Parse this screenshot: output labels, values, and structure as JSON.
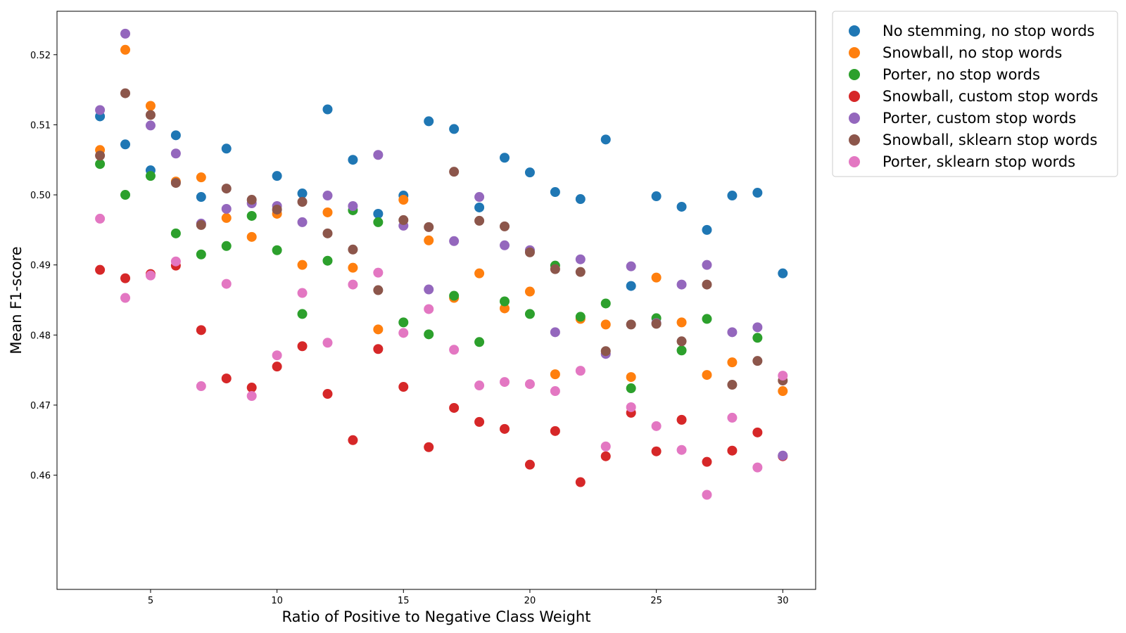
{
  "chart_data": {
    "type": "scatter",
    "title": "",
    "xlabel": "Ratio of Positive to Negative Class Weight",
    "ylabel": "Mean F1-score",
    "xlim": [
      1.3,
      31.3
    ],
    "ylim": [
      0.4437,
      0.5262
    ],
    "x_ticks": [
      5,
      10,
      15,
      20,
      25,
      30
    ],
    "y_ticks": [
      0.46,
      0.47,
      0.48,
      0.49,
      0.5,
      0.51,
      0.52
    ],
    "x_tick_labels": [
      "5",
      "10",
      "15",
      "20",
      "25",
      "30"
    ],
    "y_tick_labels": [
      "0.46",
      "0.47",
      "0.48",
      "0.49",
      "0.50",
      "0.51",
      "0.52"
    ],
    "grid": false,
    "legend_position": "outside-top-right",
    "x": [
      3,
      4,
      5,
      6,
      7,
      8,
      9,
      10,
      11,
      12,
      13,
      14,
      15,
      16,
      17,
      18,
      19,
      20,
      21,
      22,
      23,
      24,
      25,
      26,
      27,
      28,
      29,
      30
    ],
    "series": [
      {
        "name": "No stemming, no stop words",
        "color": "#1f77b4",
        "values": [
          0.5112,
          0.5072,
          0.5035,
          0.5085,
          0.4997,
          0.5066,
          null,
          0.5027,
          0.5002,
          0.5122,
          0.505,
          0.4973,
          0.4999,
          0.5105,
          0.5094,
          0.4982,
          0.5053,
          0.5032,
          0.5004,
          0.4994,
          0.5079,
          0.487,
          0.4998,
          0.4983,
          0.495,
          0.4999,
          0.5003,
          0.4888
        ]
      },
      {
        "name": "Snowball, no stop words",
        "color": "#ff7f0e",
        "values": [
          0.5064,
          0.5207,
          0.5127,
          0.5019,
          0.5025,
          0.4967,
          0.494,
          0.4973,
          0.49,
          0.4975,
          0.4896,
          0.4808,
          0.4993,
          0.4935,
          0.4853,
          0.4888,
          0.4838,
          0.4862,
          0.4744,
          0.4823,
          0.4815,
          0.474,
          0.4882,
          0.4818,
          0.4743,
          0.4761,
          null,
          0.472
        ]
      },
      {
        "name": "Porter, no stop words",
        "color": "#2ca02c",
        "values": [
          0.5044,
          0.5,
          0.5027,
          0.4945,
          0.4915,
          0.4927,
          0.497,
          0.4921,
          0.483,
          0.4906,
          0.4978,
          0.4961,
          0.4818,
          0.4801,
          0.4856,
          0.479,
          0.4848,
          0.483,
          0.4899,
          0.4826,
          0.4845,
          0.4724,
          0.4824,
          0.4778,
          0.4823,
          null,
          0.4796,
          null
        ]
      },
      {
        "name": "Snowball, custom stop words",
        "color": "#d62728",
        "values": [
          0.4893,
          0.4881,
          0.4887,
          0.4899,
          0.4807,
          0.4738,
          0.4725,
          0.4755,
          0.4784,
          0.4716,
          0.465,
          0.478,
          0.4726,
          0.464,
          0.4696,
          0.4676,
          0.4666,
          0.4615,
          0.4663,
          0.459,
          0.4627,
          0.4689,
          0.4634,
          0.4679,
          0.4619,
          0.4635,
          0.4661,
          0.4627
        ]
      },
      {
        "name": "Porter, custom stop words",
        "color": "#9467bd",
        "values": [
          0.5121,
          0.523,
          0.5099,
          0.5059,
          0.4959,
          0.498,
          0.4988,
          0.4984,
          0.4961,
          0.4999,
          0.4984,
          0.5057,
          0.4956,
          0.4865,
          0.4934,
          0.4997,
          0.4928,
          0.4921,
          0.4804,
          0.4908,
          0.4773,
          0.4898,
          0.4817,
          0.4872,
          0.49,
          0.4804,
          0.4811,
          0.4628
        ]
      },
      {
        "name": "Snowball, sklearn stop words",
        "color": "#8c564b",
        "values": [
          0.5056,
          0.5145,
          0.5114,
          0.5017,
          0.4957,
          0.5009,
          0.4993,
          0.4979,
          0.499,
          0.4945,
          0.4922,
          0.4864,
          0.4964,
          0.4954,
          0.5033,
          0.4963,
          0.4955,
          0.4918,
          0.4894,
          0.489,
          0.4777,
          0.4815,
          0.4816,
          0.4791,
          0.4872,
          0.4729,
          0.4763,
          0.4735
        ]
      },
      {
        "name": "Porter, sklearn stop words",
        "color": "#e377c2",
        "values": [
          0.4966,
          0.4853,
          0.4885,
          0.4905,
          0.4727,
          0.4873,
          0.4713,
          0.4771,
          0.486,
          0.4789,
          0.4872,
          0.4889,
          0.4803,
          0.4837,
          0.4779,
          0.4728,
          0.4733,
          0.473,
          0.472,
          0.4749,
          0.4641,
          0.4697,
          0.467,
          0.4636,
          0.4572,
          0.4682,
          0.4611,
          0.4742
        ]
      }
    ]
  }
}
